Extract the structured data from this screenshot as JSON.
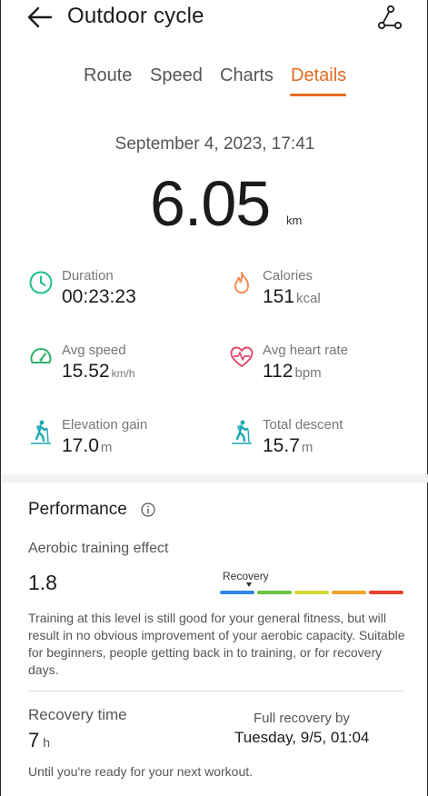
{
  "header": {
    "title": "Outdoor cycle"
  },
  "tabs": [
    {
      "label": "Route",
      "active": false
    },
    {
      "label": "Speed",
      "active": false
    },
    {
      "label": "Charts",
      "active": false
    },
    {
      "label": "Details",
      "active": true
    }
  ],
  "summary": {
    "date": "September 4, 2023, 17:41",
    "distance": "6.05",
    "distance_unit": "km"
  },
  "stats": {
    "duration": {
      "label": "Duration",
      "value": "00:23:23",
      "unit": "",
      "icon": "clock-icon"
    },
    "calories": {
      "label": "Calories",
      "value": "151",
      "unit": "kcal",
      "icon": "flame-icon"
    },
    "avg_speed": {
      "label": "Avg speed",
      "value": "15.52",
      "unit": "km/h",
      "icon": "speedometer-icon"
    },
    "avg_heart_rate": {
      "label": "Avg heart rate",
      "value": "112",
      "unit": "bpm",
      "icon": "heart-rate-icon"
    },
    "elevation_gain": {
      "label": "Elevation gain",
      "value": "17.0",
      "unit": "m",
      "icon": "hiker-uphill-icon"
    },
    "total_descent": {
      "label": "Total descent",
      "value": "15.7",
      "unit": "m",
      "icon": "hiker-downhill-icon"
    }
  },
  "performance": {
    "title": "Performance",
    "aerobic": {
      "label": "Aerobic training effect",
      "value": "1.8",
      "scale_label": "Recovery",
      "scale_colors": [
        "#2f86e4",
        "#6cc33c",
        "#d7d93a",
        "#f0a42a",
        "#e5412e"
      ],
      "description": "Training at this level is still good for your general fitness, but will result in no obvious improvement of your aerobic capacity. Suitable for beginners, people getting back in to training, or for recovery days."
    },
    "recovery": {
      "label": "Recovery time",
      "value": "7",
      "unit": "h",
      "full_label": "Full recovery by",
      "full_value": "Tuesday, 9/5, 01:04",
      "note": "Until you're ready for your next workout."
    }
  },
  "colors": {
    "accent": "#e46a21",
    "duration_icon": "#1fbf8f",
    "calories_icon": "#f08a4b",
    "speed_icon": "#2fb36a",
    "heart_icon": "#e2476b",
    "elevation_icon": "#1aa9b3"
  }
}
